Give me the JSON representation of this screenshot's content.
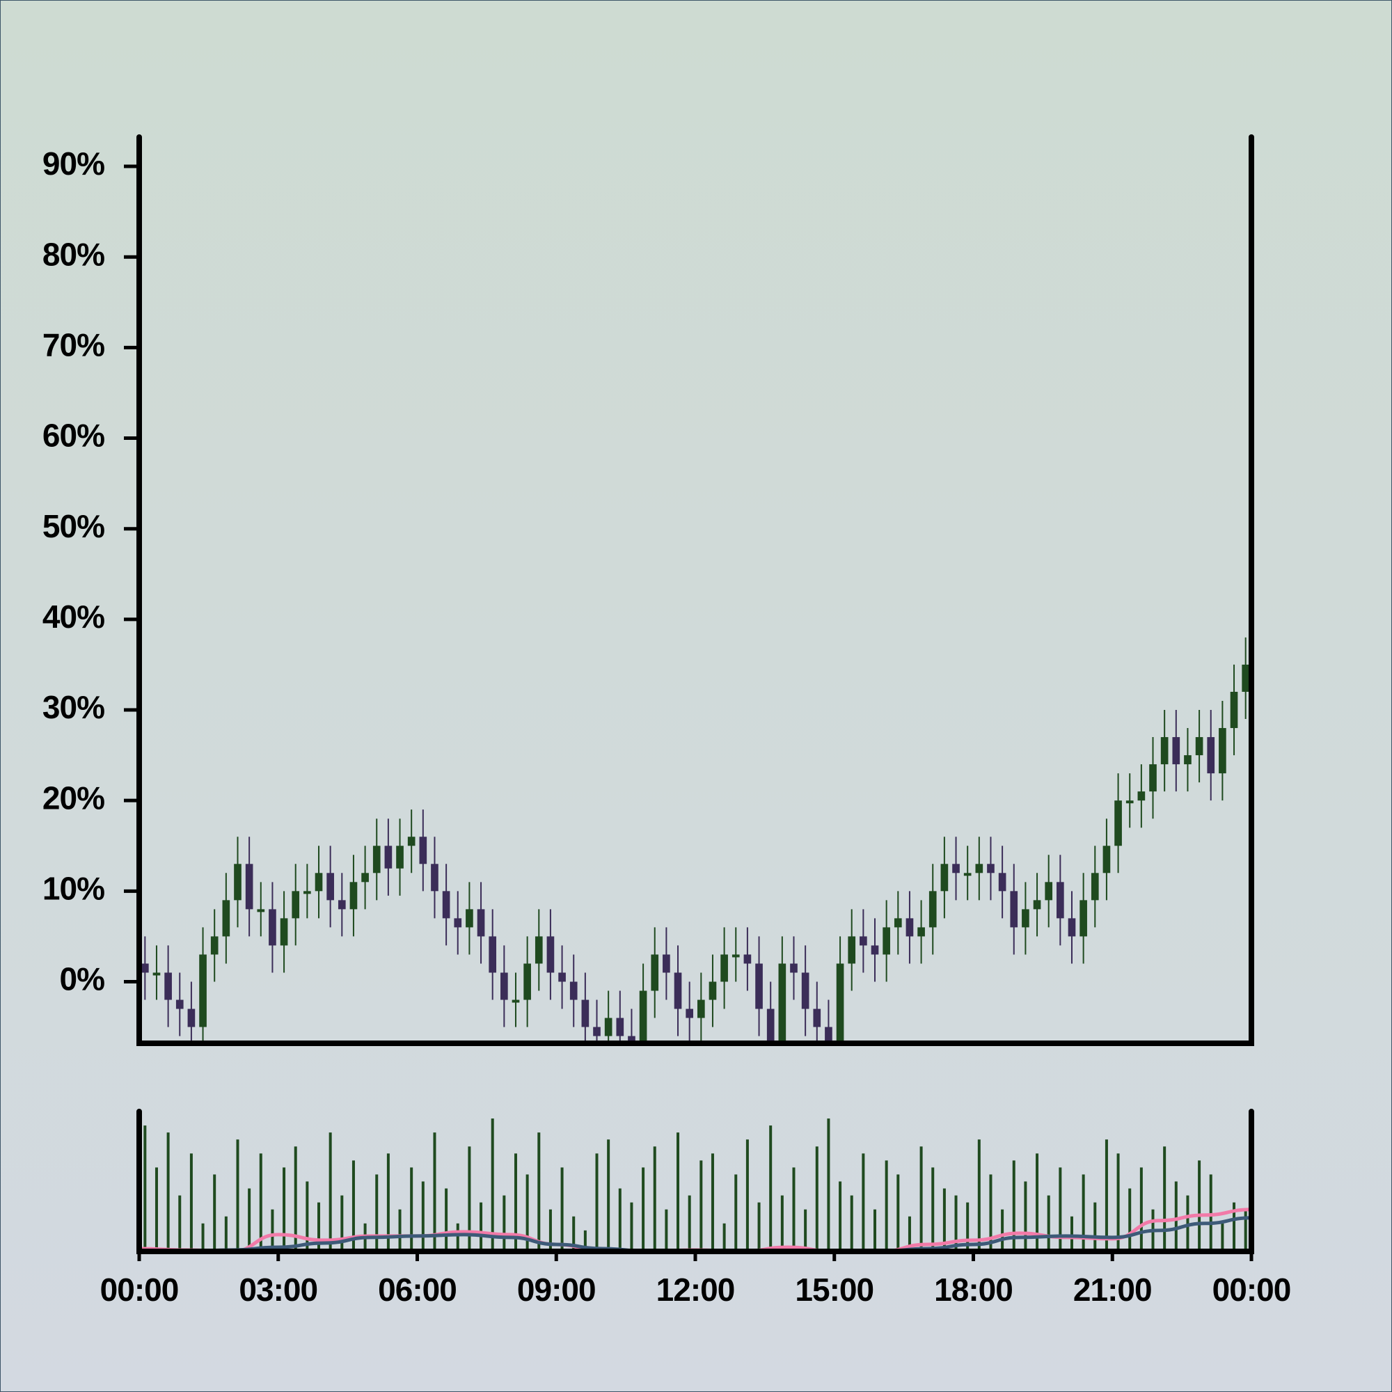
{
  "chart_data": {
    "type": "candlestick",
    "x": [
      0.125,
      0.375,
      0.625,
      0.875,
      1.125,
      1.375,
      1.625,
      1.875,
      2.125,
      2.375,
      2.625,
      2.875,
      3.125,
      3.375,
      3.625,
      3.875,
      4.125,
      4.375,
      4.625,
      4.875,
      5.125,
      5.375,
      5.625,
      5.875,
      6.125,
      6.375,
      6.625,
      6.875,
      7.125,
      7.375,
      7.625,
      7.875,
      8.125,
      8.375,
      8.625,
      8.875,
      9.125,
      9.375,
      9.625,
      9.875,
      10.125,
      10.375,
      10.625,
      10.875,
      11.125,
      11.375,
      11.625,
      11.875,
      12.125,
      12.375,
      12.625,
      12.875,
      13.125,
      13.375,
      13.625,
      13.875,
      14.125,
      14.375,
      14.625,
      14.875,
      15.125,
      15.375,
      15.625,
      15.875,
      16.125,
      16.375,
      16.625,
      16.875,
      17.125,
      17.375,
      17.625,
      17.875,
      18.125,
      18.375,
      18.625,
      18.875,
      19.125,
      19.375,
      19.625,
      19.875,
      20.125,
      20.375,
      20.625,
      20.875,
      21.125,
      21.375,
      21.625,
      21.875,
      22.125,
      22.375,
      22.625,
      22.875,
      23.125,
      23.375,
      23.625,
      23.875
    ],
    "open": [
      2,
      1,
      1,
      -2,
      -3,
      -5,
      3,
      5,
      9,
      13,
      8,
      8,
      4,
      7,
      10,
      10,
      12,
      9,
      8,
      11,
      12,
      15,
      12.5,
      15,
      16,
      13,
      10,
      7,
      6,
      8,
      5,
      1,
      -2,
      -2,
      2,
      5,
      1,
      0,
      -2,
      -5,
      -6,
      -4,
      -6,
      -7,
      -1,
      3,
      1,
      -3,
      -4,
      -2,
      0,
      3,
      3,
      2,
      -3,
      -7,
      2,
      1,
      -3,
      -5,
      -8,
      2,
      5,
      4,
      3,
      6,
      7,
      5,
      6,
      10,
      13,
      12,
      12,
      13,
      12,
      10,
      6,
      8,
      9,
      11,
      7,
      5,
      9,
      12,
      15,
      20,
      20,
      21,
      24,
      27,
      24,
      25,
      27,
      23,
      28,
      32
    ],
    "high": [
      5,
      4,
      4,
      1,
      0,
      6,
      8,
      12,
      16,
      16,
      11,
      11,
      10,
      13,
      13,
      15,
      15,
      12,
      14,
      15,
      18,
      18,
      18,
      19,
      19,
      16,
      13,
      10,
      11,
      11,
      8,
      4,
      1,
      5,
      8,
      8,
      4,
      3,
      1,
      -2,
      -1,
      -1,
      -3,
      2,
      6,
      6,
      4,
      0,
      1,
      3,
      6,
      6,
      6,
      5,
      0,
      5,
      5,
      4,
      0,
      -2,
      5,
      8,
      8,
      7,
      9,
      10,
      10,
      9,
      13,
      16,
      16,
      15,
      16,
      16,
      15,
      13,
      11,
      12,
      14,
      14,
      10,
      12,
      15,
      18,
      23,
      23,
      24,
      27,
      30,
      30,
      28,
      30,
      30,
      31,
      35,
      38
    ],
    "low": [
      -2,
      -2,
      -5,
      -6,
      -8,
      -8,
      0,
      2,
      6,
      5,
      5,
      1,
      1,
      4,
      7,
      7,
      6,
      5,
      5,
      8,
      9,
      9.5,
      9.5,
      12,
      10,
      7,
      4,
      3,
      3,
      2,
      -2,
      -5,
      -5,
      -5,
      -1,
      -2,
      -3,
      -5,
      -8,
      -9,
      -9,
      -9,
      -10,
      -10,
      -4,
      -2,
      -6,
      -7,
      -7,
      -5,
      -3,
      0,
      -1,
      -6,
      -10,
      -10,
      -2,
      -6,
      -8,
      -11,
      -11,
      -1,
      1,
      0,
      0,
      3,
      2,
      2,
      3,
      7,
      9,
      9,
      9,
      9,
      7,
      3,
      3,
      5,
      6,
      4,
      2,
      2,
      6,
      9,
      12,
      17,
      17,
      18,
      21,
      21,
      21,
      22,
      20,
      20,
      25,
      29
    ],
    "close": [
      1,
      1,
      -2,
      -3,
      -5,
      3,
      5,
      9,
      13,
      8,
      8,
      4,
      7,
      10,
      10,
      12,
      9,
      8,
      11,
      12,
      15,
      12.5,
      15,
      16,
      13,
      10,
      7,
      6,
      8,
      5,
      1,
      -2,
      -2,
      2,
      5,
      1,
      0,
      -2,
      -5,
      -6,
      -4,
      -6,
      -7,
      -1,
      3,
      1,
      -3,
      -4,
      -2,
      0,
      3,
      3,
      2,
      -3,
      -7,
      2,
      1,
      -3,
      -5,
      -8,
      2,
      5,
      4,
      3,
      6,
      7,
      5,
      6,
      10,
      13,
      12,
      12,
      13,
      12,
      10,
      6,
      8,
      9,
      11,
      7,
      5,
      9,
      12,
      15,
      20,
      20,
      21,
      24,
      27,
      24,
      25,
      27,
      23,
      28,
      32,
      35
    ],
    "up_color": "#1f4a1f",
    "down_color": "#3b2d58",
    "xlim": [
      0,
      24
    ],
    "xticks": [
      {
        "value": 0,
        "label": "00:00"
      },
      {
        "value": 3,
        "label": "03:00"
      },
      {
        "value": 6,
        "label": "06:00"
      },
      {
        "value": 9,
        "label": "09:00"
      },
      {
        "value": 12,
        "label": "12:00"
      },
      {
        "value": 15,
        "label": "15:00"
      },
      {
        "value": 18,
        "label": "18:00"
      },
      {
        "value": 21,
        "label": "21:00"
      },
      {
        "value": 24,
        "label": "00:00"
      }
    ],
    "ylim": [
      -6.8,
      93
    ],
    "yticks": [
      {
        "value": 0,
        "label": "0%"
      },
      {
        "value": 10,
        "label": "10%"
      },
      {
        "value": 20,
        "label": "20%"
      },
      {
        "value": 30,
        "label": "30%"
      },
      {
        "value": 40,
        "label": "40%"
      },
      {
        "value": 50,
        "label": "50%"
      },
      {
        "value": 60,
        "label": "60%"
      },
      {
        "value": 70,
        "label": "70%"
      },
      {
        "value": 80,
        "label": "80%"
      },
      {
        "value": 90,
        "label": "90%"
      }
    ],
    "volume": {
      "color": "#1f4a1f",
      "ylim": [
        0,
        100
      ],
      "values": [
        90,
        60,
        85,
        40,
        70,
        20,
        55,
        25,
        80,
        45,
        70,
        30,
        60,
        75,
        50,
        35,
        85,
        40,
        65,
        20,
        55,
        70,
        30,
        60,
        50,
        85,
        45,
        20,
        75,
        35,
        95,
        40,
        70,
        55,
        85,
        30,
        60,
        25,
        15,
        70,
        80,
        45,
        35,
        60,
        75,
        30,
        85,
        40,
        65,
        70,
        20,
        55,
        80,
        35,
        90,
        40,
        60,
        30,
        75,
        95,
        50,
        40,
        70,
        30,
        65,
        55,
        25,
        75,
        60,
        45,
        40,
        35,
        80,
        55,
        30,
        65,
        50,
        70,
        40,
        60,
        25,
        55,
        35,
        80,
        70,
        45,
        60,
        30,
        75,
        50,
        40,
        65,
        55,
        20,
        35,
        30
      ]
    },
    "lines": [
      {
        "color": "#f27aa8",
        "x": [
          0,
          1,
          2,
          3,
          4,
          5,
          6,
          7,
          8,
          9,
          10,
          11,
          12,
          13,
          14,
          15,
          16,
          17,
          18,
          19,
          20,
          21,
          22,
          23,
          24
        ],
        "values": [
          2,
          1,
          0,
          12,
          8,
          11,
          11,
          14,
          12,
          5,
          0,
          0,
          1,
          0,
          3,
          0,
          0,
          5,
          8,
          13,
          10,
          9,
          22,
          26,
          30
        ]
      },
      {
        "color": "#3d5a78",
        "x": [
          0,
          1,
          2,
          3,
          4,
          5,
          6,
          7,
          8,
          9,
          10,
          11,
          12,
          13,
          14,
          15,
          16,
          17,
          18,
          19,
          20,
          21,
          22,
          23,
          24
        ],
        "values": [
          0,
          0,
          1,
          3,
          6,
          10,
          11,
          12,
          10,
          5,
          2,
          0,
          0,
          0,
          0,
          0,
          0,
          2,
          5,
          10,
          11,
          10,
          15,
          20,
          24
        ]
      }
    ]
  }
}
